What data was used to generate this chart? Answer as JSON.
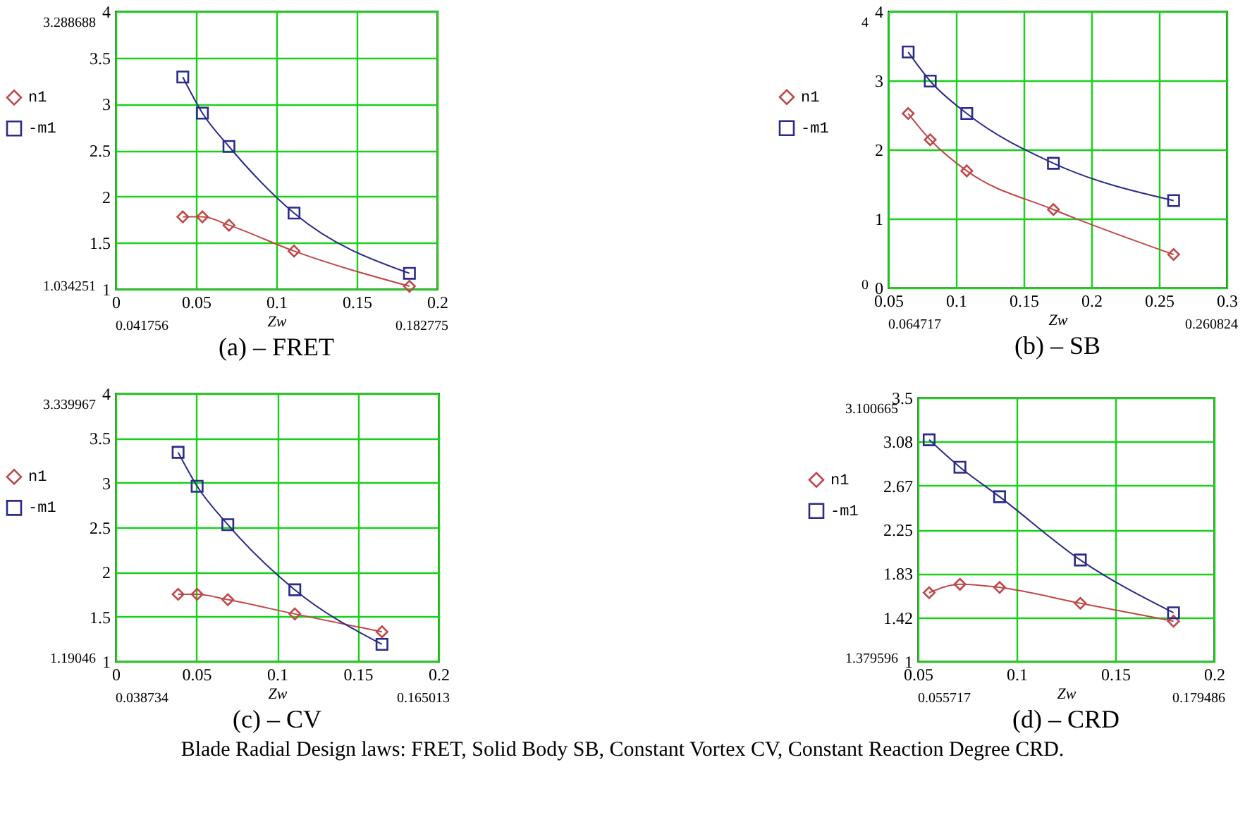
{
  "chart_data": [
    {
      "type": "line",
      "title": "(a) – FRET",
      "xlabel": "Zw",
      "x": [
        0.0418,
        0.054,
        0.0705,
        0.111,
        0.1828
      ],
      "xlim": [
        0,
        0.2
      ],
      "xticks": [
        0,
        0.05,
        0.1,
        0.15,
        0.2
      ],
      "ylim": [
        1,
        4
      ],
      "yticks": [
        1,
        1.5,
        2,
        2.5,
        3,
        3.5,
        4
      ],
      "grid": true,
      "legend": "left",
      "line_style": "solid",
      "series": [
        {
          "name": "n1",
          "color": "#c04848",
          "marker": "diamond",
          "values": [
            1.78,
            1.78,
            1.69,
            1.41,
            1.03
          ]
        },
        {
          "name": "-m1",
          "color": "#2a2a8a",
          "marker": "square",
          "values": [
            3.29,
            2.9,
            2.54,
            1.82,
            1.17
          ]
        }
      ],
      "annotations": [
        "3.288688",
        "1.034251",
        "0.041756",
        "0.182775"
      ]
    },
    {
      "type": "line",
      "title": "(b) – SB",
      "xlabel": "Zw",
      "x": [
        0.0647,
        0.081,
        0.108,
        0.172,
        0.2608
      ],
      "xlim": [
        0.05,
        0.3
      ],
      "xticks": [
        0.05,
        0.1,
        0.15,
        0.2,
        0.25,
        0.3
      ],
      "ylim": [
        0,
        4
      ],
      "yticks": [
        0,
        1,
        2,
        3,
        4
      ],
      "grid": true,
      "legend": "left",
      "line_style": "solid",
      "series": [
        {
          "name": "n1",
          "color": "#c04848",
          "marker": "diamond",
          "values": [
            2.52,
            2.14,
            1.69,
            1.13,
            0.48
          ]
        },
        {
          "name": "-m1",
          "color": "#2a2a8a",
          "marker": "square",
          "values": [
            3.41,
            2.99,
            2.52,
            1.8,
            1.26
          ]
        }
      ],
      "annotations": [
        "4",
        "0",
        "0.064717",
        "0.260824"
      ]
    },
    {
      "type": "line",
      "title": "(c) – CV",
      "xlabel": "Zw",
      "x": [
        0.0387,
        0.0505,
        0.0695,
        0.111,
        0.165
      ],
      "xlim": [
        0,
        0.2
      ],
      "xticks": [
        0,
        0.05,
        0.1,
        0.15,
        0.2
      ],
      "ylim": [
        1,
        4
      ],
      "yticks": [
        1,
        1.5,
        2,
        2.5,
        3,
        3.5,
        4
      ],
      "grid": true,
      "legend": "left",
      "line_style": "solid",
      "series": [
        {
          "name": "n1",
          "color": "#c04848",
          "marker": "diamond",
          "values": [
            1.75,
            1.75,
            1.69,
            1.53,
            1.33
          ]
        },
        {
          "name": "-m1",
          "color": "#2a2a8a",
          "marker": "square",
          "values": [
            3.34,
            2.96,
            2.53,
            1.8,
            1.19
          ]
        }
      ],
      "annotations": [
        "3.339967",
        "1.19046",
        "0.038734",
        "0.165013"
      ]
    },
    {
      "type": "line",
      "title": "(d) – CRD",
      "xlabel": "Zw",
      "x": [
        0.0557,
        0.0713,
        0.0914,
        0.1323,
        0.1795
      ],
      "xlim": [
        0.05,
        0.2
      ],
      "xticks": [
        0.05,
        0.1,
        0.15,
        0.2
      ],
      "ylim": [
        1,
        3.5
      ],
      "yticks": [
        1,
        {
          "value": 1.4167,
          "label": "1.42"
        },
        {
          "value": 1.8333,
          "label": "1.83"
        },
        2.25,
        {
          "value": 2.6667,
          "label": "2.67"
        },
        {
          "value": 3.0833,
          "label": "3.08"
        },
        3.5
      ],
      "grid": true,
      "legend": "left",
      "line_style": "solid",
      "series": [
        {
          "name": "n1",
          "color": "#c04848",
          "marker": "diamond",
          "values": [
            1.65,
            1.73,
            1.7,
            1.55,
            1.38
          ]
        },
        {
          "name": "-m1",
          "color": "#2a2a8a",
          "marker": "square",
          "values": [
            3.1,
            2.84,
            2.56,
            1.96,
            1.46
          ]
        }
      ],
      "annotations": [
        "3.100665",
        "1.379596",
        "0.055717",
        "0.179486",
        "Blade Radial Design laws: FRET, Solid Body SB, Constant Vortex CV, Constant Reaction Degree CRD."
      ]
    }
  ]
}
